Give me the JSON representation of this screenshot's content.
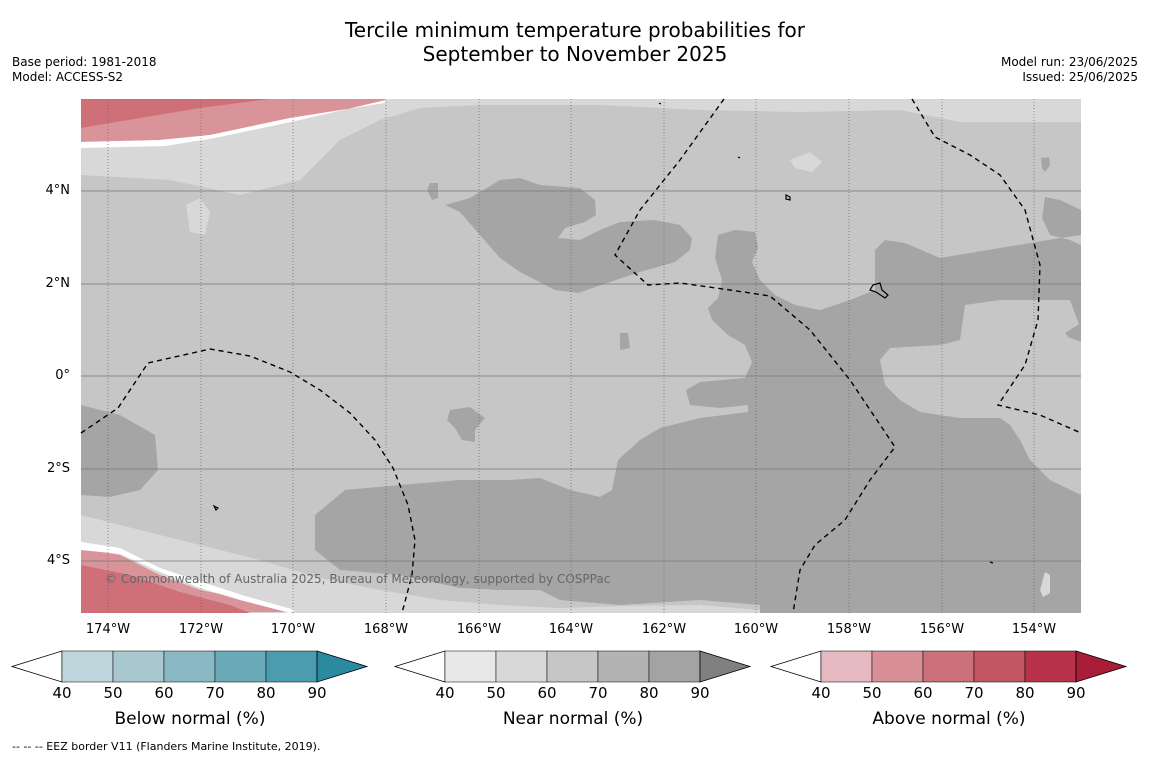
{
  "title": {
    "line1": "Tercile minimum temperature probabilities for",
    "line2": "September to November 2025"
  },
  "meta_left": {
    "base_period": "Base period: 1981-2018",
    "model": "Model: ACCESS-S2"
  },
  "meta_right": {
    "model_run": "Model run: 23/06/2025",
    "issued": "Issued: 25/06/2025"
  },
  "map": {
    "latitude_labels": [
      "4°N",
      "2°N",
      "0°",
      "2°S",
      "4°S"
    ],
    "longitude_labels": [
      "174°W",
      "172°W",
      "170°W",
      "168°W",
      "166°W",
      "164°W",
      "162°W",
      "160°W",
      "158°W",
      "156°W",
      "154°W"
    ],
    "copyright": "© Commonwealth of Australia 2025, Bureau of Meteorology, supported by COSPPac"
  },
  "colorbars": [
    {
      "title": "Below normal (%)",
      "ticks": [
        "40",
        "50",
        "60",
        "70",
        "80",
        "90"
      ],
      "colors": [
        "#ffffff",
        "#bfd5dc",
        "#a8c7ce",
        "#8ab8c4",
        "#6aa9b8",
        "#4a9cae",
        "#2a8aa0"
      ]
    },
    {
      "title": "Near normal (%)",
      "ticks": [
        "40",
        "50",
        "60",
        "70",
        "80",
        "90"
      ],
      "colors": [
        "#ffffff",
        "#e8e8e8",
        "#d8d8d8",
        "#c6c6c6",
        "#b3b3b3",
        "#a3a3a3",
        "#808080"
      ]
    },
    {
      "title": "Above normal (%)",
      "ticks": [
        "40",
        "50",
        "60",
        "70",
        "80",
        "90"
      ],
      "colors": [
        "#ffffff",
        "#e4b9bf",
        "#d98f98",
        "#cc7079",
        "#c25663",
        "#b8334a",
        "#a81e38"
      ]
    }
  ],
  "legend_note": "--  --  -- EEZ border V11 (Flanders Marine Institute, 2019)."
}
